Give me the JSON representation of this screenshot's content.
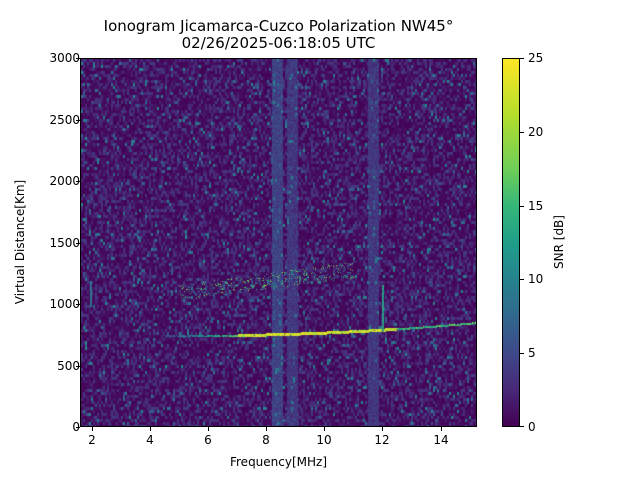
{
  "chart_data": {
    "type": "heatmap",
    "title": "Ionogram Jicamarca-Cuzco Polarization NW45°",
    "subtitle": "02/26/2025-06:18:05 UTC",
    "xlabel": "Frequency[MHz]",
    "ylabel": "Virtual Distance[Km]",
    "xlim": [
      1.6,
      15.25
    ],
    "ylim": [
      0,
      3000
    ],
    "xticks": [
      "2",
      "4",
      "6",
      "8",
      "10",
      "12",
      "14"
    ],
    "yticks": [
      "0",
      "500",
      "1000",
      "1500",
      "2000",
      "2500",
      "3000"
    ],
    "colorbar": {
      "label": "SNR [dB]",
      "range": [
        0,
        25
      ],
      "ticks": [
        "0",
        "5",
        "10",
        "15",
        "20",
        "25"
      ],
      "colormap": "viridis"
    },
    "grid": false,
    "features": [
      {
        "name": "F-layer primary echo trace",
        "freq_range_mhz": [
          4.5,
          15.2
        ],
        "distance_km_start": 735,
        "distance_km_end": 840,
        "peak_snr_db": 25,
        "strongest_freq_mhz": [
          7.0,
          12.5
        ]
      },
      {
        "name": "Second echo trace",
        "freq_range_mhz": [
          5.0,
          11.0
        ],
        "distance_km_start": 1090,
        "distance_km_end": 1280,
        "peak_snr_db": 22
      },
      {
        "name": "Interference band",
        "freq_mhz": 8.4,
        "distance_km_range": [
          0,
          3000
        ],
        "snr_db": 3
      },
      {
        "name": "Interference band",
        "freq_mhz": 8.9,
        "distance_km_range": [
          0,
          3000
        ],
        "snr_db": 2
      },
      {
        "name": "Interference band",
        "freq_mhz": 11.7,
        "distance_km_range": [
          0,
          3000
        ],
        "snr_db": 2
      },
      {
        "name": "Vertical spike",
        "freq_mhz": 12.0,
        "distance_km_range": [
          780,
          1150
        ],
        "snr_db": 15
      },
      {
        "name": "Vertical spike",
        "freq_mhz": 1.9,
        "distance_km_range": [
          980,
          1180
        ],
        "snr_db": 10
      },
      {
        "name": "Background noise",
        "snr_db_typical": [
          0,
          5
        ]
      }
    ]
  }
}
